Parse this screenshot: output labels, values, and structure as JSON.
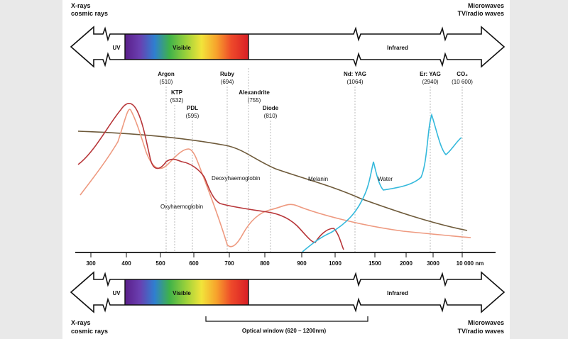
{
  "top_left_label": [
    "X-rays",
    "cosmic rays"
  ],
  "top_right_label": [
    "Microwaves",
    "TV/radio waves"
  ],
  "bottom_left_label": [
    "X-rays",
    "cosmic rays"
  ],
  "bottom_right_label": [
    "Microwaves",
    "TV/radio waves"
  ],
  "band": {
    "uv": "UV",
    "visible": "Visible",
    "infrared": "Infrared"
  },
  "lasers": [
    {
      "name": "Argon",
      "wl": "(510)"
    },
    {
      "name": "KTP",
      "wl": "(532)"
    },
    {
      "name": "PDL",
      "wl": "(595)"
    },
    {
      "name": "Ruby",
      "wl": "(694)"
    },
    {
      "name": "Alexandrite",
      "wl": "(755)"
    },
    {
      "name": "Diode",
      "wl": "(810)"
    },
    {
      "name": "Nd: YAG",
      "wl": "(1064)"
    },
    {
      "name": "Er: YAG",
      "wl": "(2940)"
    },
    {
      "name": "CO₂",
      "wl": "(10 600)"
    }
  ],
  "curve_labels": {
    "deoxy": "Deoxyhaemoglobin",
    "oxy": "Oxyhaemoglobin",
    "melanin": "Melanin",
    "water": "Water"
  },
  "axis_ticks": [
    "300",
    "400",
    "500",
    "600",
    "700",
    "800",
    "900",
    "1000",
    "1500",
    "2000",
    "3000",
    "10 000 nm"
  ],
  "optical_window": "Optical window (620 – 1200nm)",
  "colors": {
    "deoxy": "#b8373a",
    "oxy": "#ee9a80",
    "melanin": "#6e5a3a",
    "water": "#35b9dc",
    "dashed": "#aaaaaa"
  }
}
